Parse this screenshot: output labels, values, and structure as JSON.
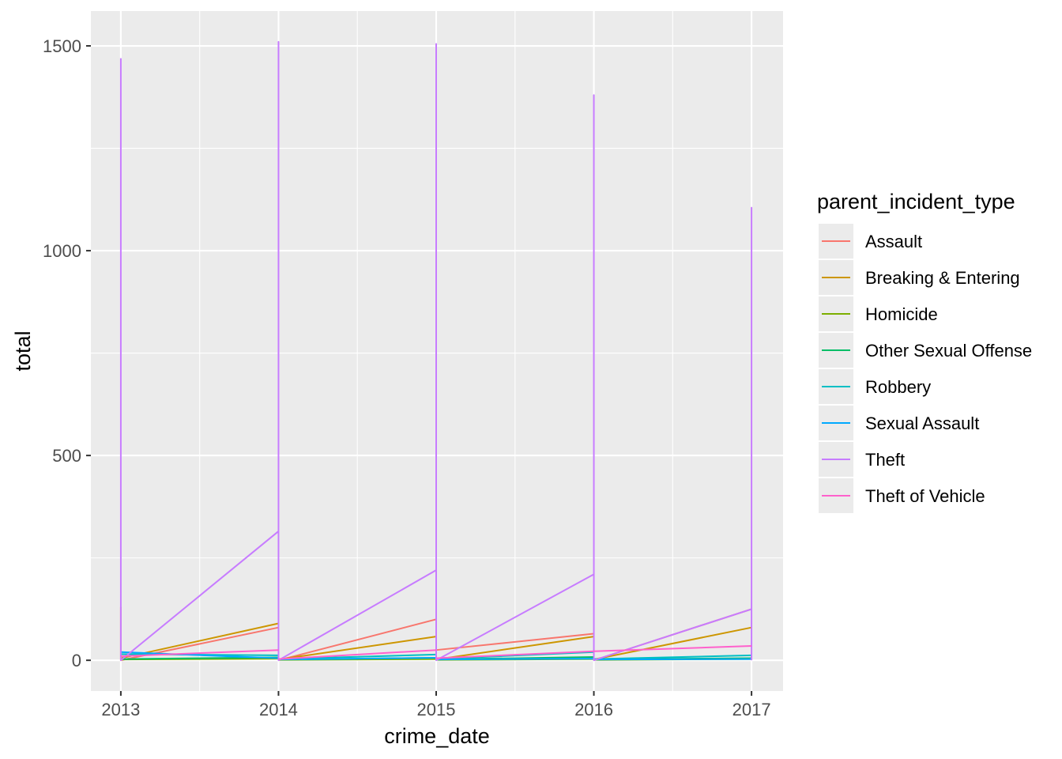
{
  "chart_data": {
    "type": "line",
    "xlabel": "crime_date",
    "ylabel": "total",
    "x_ticks": [
      "2013",
      "2014",
      "2015",
      "2016",
      "2017"
    ],
    "y_ticks": [
      "0",
      "500",
      "1000",
      "1500"
    ],
    "xlim": [
      2012.81,
      2017.2
    ],
    "ylim": [
      -75,
      1585
    ],
    "grid": true,
    "legend": {
      "title": "parent_incident_type",
      "position": "right"
    },
    "series": [
      {
        "name": "Assault",
        "color": "#F8766D",
        "segments": [
          [
            [
              2013,
              130
            ],
            [
              2013,
              0
            ],
            [
              2014,
              80
            ]
          ],
          [
            [
              2014,
              0
            ],
            [
              2015,
              100
            ]
          ],
          [
            [
              2015,
              25
            ],
            [
              2016,
              65
            ]
          ],
          [
            [
              2016,
              0
            ],
            [
              2017,
              125
            ]
          ]
        ]
      },
      {
        "name": "Breaking & Entering",
        "color": "#CD9600",
        "segments": [
          [
            [
              2013,
              5
            ],
            [
              2014,
              90
            ]
          ],
          [
            [
              2014,
              2
            ],
            [
              2015,
              58
            ]
          ],
          [
            [
              2015,
              2
            ],
            [
              2016,
              58
            ]
          ],
          [
            [
              2016,
              2
            ],
            [
              2017,
              80
            ]
          ]
        ]
      },
      {
        "name": "Homicide",
        "color": "#7CAE00",
        "segments": [
          [
            [
              2013,
              2
            ],
            [
              2014,
              4
            ]
          ],
          [
            [
              2014,
              1
            ],
            [
              2015,
              3
            ]
          ],
          [
            [
              2015,
              1
            ],
            [
              2016,
              3
            ]
          ],
          [
            [
              2016,
              1
            ],
            [
              2017,
              3
            ]
          ]
        ]
      },
      {
        "name": "Other Sexual Offense",
        "color": "#00BE67",
        "segments": [
          [
            [
              2013,
              3
            ],
            [
              2014,
              7
            ]
          ],
          [
            [
              2014,
              2
            ],
            [
              2015,
              6
            ]
          ],
          [
            [
              2015,
              2
            ],
            [
              2016,
              8
            ]
          ],
          [
            [
              2016,
              2
            ],
            [
              2017,
              5
            ]
          ]
        ]
      },
      {
        "name": "Robbery",
        "color": "#00BFC4",
        "segments": [
          [
            [
              2013,
              15
            ],
            [
              2014,
              12
            ]
          ],
          [
            [
              2014,
              3
            ],
            [
              2015,
              14
            ]
          ],
          [
            [
              2015,
              3
            ],
            [
              2016,
              20
            ]
          ],
          [
            [
              2016,
              3
            ],
            [
              2017,
              12
            ]
          ]
        ]
      },
      {
        "name": "Sexual Assault",
        "color": "#00A9FF",
        "segments": [
          [
            [
              2013,
              20
            ],
            [
              2014,
              5
            ]
          ],
          [
            [
              2014,
              2
            ],
            [
              2015,
              6
            ]
          ],
          [
            [
              2015,
              2
            ],
            [
              2016,
              4
            ]
          ],
          [
            [
              2016,
              2
            ],
            [
              2017,
              3
            ]
          ]
        ]
      },
      {
        "name": "Theft",
        "color": "#C77CFF",
        "segments": [
          [
            [
              2013,
              1470
            ],
            [
              2013,
              0
            ],
            [
              2014,
              315
            ],
            [
              2014,
              1510
            ],
            [
              2014,
              0
            ],
            [
              2015,
              220
            ],
            [
              2015,
              1505
            ],
            [
              2015,
              0
            ],
            [
              2016,
              210
            ],
            [
              2016,
              1380
            ],
            [
              2016,
              0
            ],
            [
              2017,
              125
            ],
            [
              2017,
              1105
            ],
            [
              2017,
              0
            ]
          ]
        ]
      },
      {
        "name": "Theft of Vehicle",
        "color": "#FF61CC",
        "segments": [
          [
            [
              2013,
              10
            ],
            [
              2014,
              25
            ]
          ],
          [
            [
              2014,
              3
            ],
            [
              2015,
              25
            ]
          ],
          [
            [
              2015,
              5
            ],
            [
              2016,
              22
            ]
          ],
          [
            [
              2016,
              22
            ],
            [
              2017,
              35
            ]
          ]
        ]
      }
    ]
  }
}
